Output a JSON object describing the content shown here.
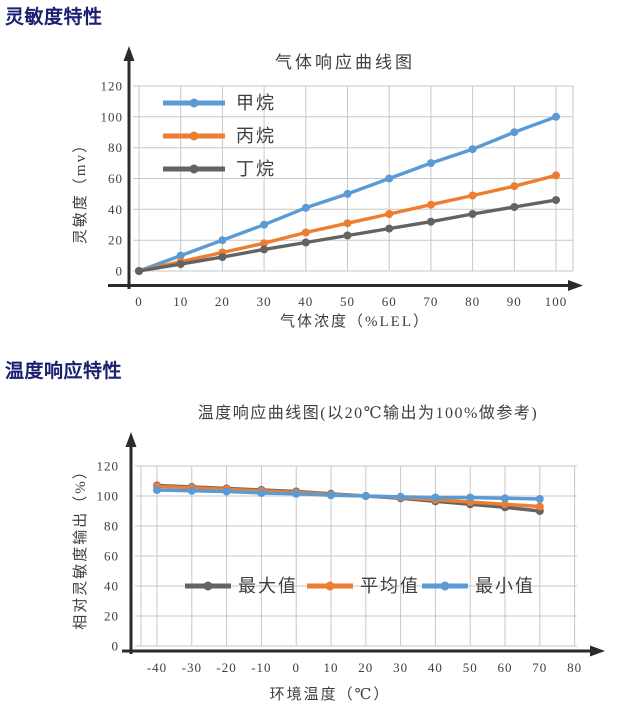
{
  "page": {
    "background": "#ffffff"
  },
  "sections": {
    "sensitivity": {
      "header": "灵敏度特性"
    },
    "temperature": {
      "header": "温度响应特性"
    }
  },
  "colors": {
    "header_text": "#1b2070",
    "series_blue": "#5B9BD5",
    "series_orange": "#ED7D31",
    "series_gray": "#636363",
    "grid": "#c7c7c7",
    "axis": "#2b2b2b",
    "chart_text": "#3f3f3f"
  },
  "chart_data": [
    {
      "id": "gas-response",
      "type": "line",
      "title": "气体响应曲线图",
      "xlabel": "气体浓度（%LEL）",
      "ylabel": "灵敏度（mv）",
      "categories": [
        0,
        10,
        20,
        30,
        40,
        50,
        60,
        70,
        80,
        90,
        100
      ],
      "yticks": [
        0,
        20,
        40,
        60,
        80,
        100,
        120
      ],
      "ylim": [
        0,
        120
      ],
      "grid": true,
      "legend_position": "inside-upper-left-column",
      "series": [
        {
          "id": "methane",
          "name": "甲烷",
          "color": "#5B9BD5",
          "values": [
            0,
            10,
            20,
            30,
            41,
            50,
            60,
            70,
            79,
            90,
            100
          ]
        },
        {
          "id": "propane",
          "name": "丙烷",
          "color": "#ED7D31",
          "values": [
            0,
            6,
            12,
            18,
            25,
            31,
            37,
            43,
            49,
            55,
            62
          ]
        },
        {
          "id": "butane",
          "name": "丁烷",
          "color": "#636363",
          "values": [
            0,
            4.5,
            9,
            14,
            18.5,
            23,
            27.5,
            32,
            37,
            41.5,
            46
          ]
        }
      ]
    },
    {
      "id": "temperature-response",
      "type": "line",
      "title": "温度响应曲线图(以20℃输出为100%做参考)",
      "xlabel": "环境温度（℃）",
      "ylabel": "相对灵敏度输出（%）",
      "categories": [
        -40,
        -30,
        -20,
        -10,
        0,
        10,
        20,
        30,
        40,
        50,
        60,
        70,
        80
      ],
      "yticks": [
        0,
        20,
        40,
        60,
        80,
        100,
        120
      ],
      "ylim": [
        0,
        120
      ],
      "grid": true,
      "legend_position": "inside-bottom-row",
      "series": [
        {
          "id": "max",
          "name": "最大值",
          "color": "#636363",
          "values": [
            107,
            106,
            105,
            104,
            103,
            101.5,
            100,
            98.5,
            96.5,
            94.5,
            92.5,
            90
          ]
        },
        {
          "id": "average",
          "name": "平均值",
          "color": "#ED7D31",
          "values": [
            106.5,
            105.5,
            104.5,
            103.5,
            102.5,
            101,
            100,
            99,
            97.5,
            96,
            94.5,
            93
          ]
        },
        {
          "id": "min",
          "name": "最小值",
          "color": "#5B9BD5",
          "values": [
            104,
            103.5,
            103,
            102,
            101.5,
            100.5,
            100,
            99.5,
            99,
            99,
            98.5,
            98
          ]
        }
      ]
    }
  ]
}
